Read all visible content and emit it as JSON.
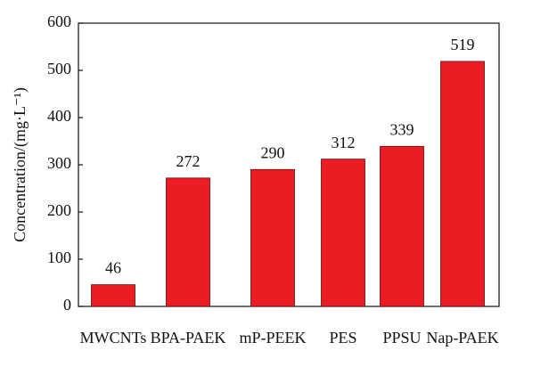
{
  "chart_data": {
    "type": "bar",
    "y_label": "Concentration/(mg·L⁻¹)",
    "categories": [
      "MWCNTs",
      "BPA-PAEK",
      "mP-PEEK",
      "PES",
      "PPSU",
      "Nap-PAEK"
    ],
    "values": [
      46,
      272,
      290,
      312,
      339,
      519
    ],
    "color": "#ec1c24",
    "ylim": [
      0,
      600
    ],
    "yticks": [
      0,
      100,
      200,
      300,
      400,
      500,
      600
    ],
    "grid": false
  }
}
